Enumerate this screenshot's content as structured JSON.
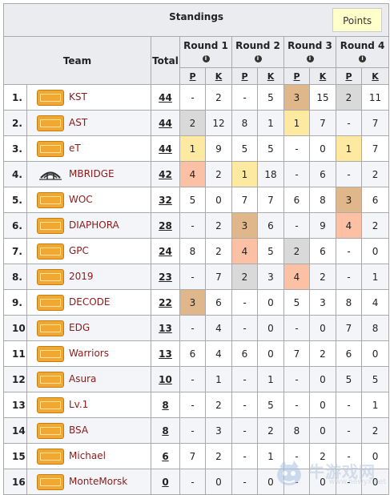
{
  "title": "Standings",
  "points_button": "Points",
  "headers": {
    "team": "Team",
    "total": "Total",
    "p": "P",
    "k": "K"
  },
  "rounds": [
    "Round 1",
    "Round 2",
    "Round 3",
    "Round 4"
  ],
  "rows": [
    {
      "rank": "1.",
      "logo": "pubg",
      "team": "KST",
      "total": "44",
      "r": [
        [
          "-",
          "2"
        ],
        [
          "-",
          "5"
        ],
        [
          "3",
          "15"
        ],
        [
          "2",
          "11"
        ]
      ],
      "hl": [
        [
          0,
          0
        ],
        [
          0,
          0
        ],
        [
          "bronze",
          0
        ],
        [
          "silver",
          0
        ]
      ]
    },
    {
      "rank": "2.",
      "logo": "pubg",
      "team": "AST",
      "total": "44",
      "r": [
        [
          "2",
          "12"
        ],
        [
          "8",
          "1"
        ],
        [
          "1",
          "7"
        ],
        [
          "-",
          "7"
        ]
      ],
      "hl": [
        [
          "silver",
          0
        ],
        [
          0,
          0
        ],
        [
          "gold",
          0
        ],
        [
          0,
          0
        ]
      ]
    },
    {
      "rank": "3.",
      "logo": "pubg",
      "team": "eT",
      "total": "44",
      "r": [
        [
          "1",
          "9"
        ],
        [
          "5",
          "5"
        ],
        [
          "-",
          "0"
        ],
        [
          "1",
          "7"
        ]
      ],
      "hl": [
        [
          "gold",
          0
        ],
        [
          0,
          0
        ],
        [
          0,
          0
        ],
        [
          "gold",
          0
        ]
      ]
    },
    {
      "rank": "4.",
      "logo": "mbridge",
      "team": "MBRIDGE",
      "total": "42",
      "r": [
        [
          "4",
          "2"
        ],
        [
          "1",
          "18"
        ],
        [
          "-",
          "6"
        ],
        [
          "-",
          "2"
        ]
      ],
      "hl": [
        [
          "fourth",
          0
        ],
        [
          "gold",
          0
        ],
        [
          0,
          0
        ],
        [
          0,
          0
        ]
      ]
    },
    {
      "rank": "5.",
      "logo": "pubg",
      "team": "WOC",
      "total": "32",
      "r": [
        [
          "5",
          "0"
        ],
        [
          "7",
          "7"
        ],
        [
          "6",
          "8"
        ],
        [
          "3",
          "6"
        ]
      ],
      "hl": [
        [
          0,
          0
        ],
        [
          0,
          0
        ],
        [
          0,
          0
        ],
        [
          "bronze",
          0
        ]
      ]
    },
    {
      "rank": "6.",
      "logo": "pubg",
      "team": "DIAPHORA",
      "total": "28",
      "r": [
        [
          "-",
          "2"
        ],
        [
          "3",
          "6"
        ],
        [
          "-",
          "9"
        ],
        [
          "4",
          "2"
        ]
      ],
      "hl": [
        [
          0,
          0
        ],
        [
          "bronze",
          0
        ],
        [
          0,
          0
        ],
        [
          "fourth",
          0
        ]
      ]
    },
    {
      "rank": "7.",
      "logo": "pubg",
      "team": "GPC",
      "total": "24",
      "r": [
        [
          "8",
          "2"
        ],
        [
          "4",
          "5"
        ],
        [
          "2",
          "6"
        ],
        [
          "-",
          "0"
        ]
      ],
      "hl": [
        [
          0,
          0
        ],
        [
          "fourth",
          0
        ],
        [
          "silver",
          0
        ],
        [
          0,
          0
        ]
      ]
    },
    {
      "rank": "8.",
      "logo": "pubg",
      "team": "2019",
      "total": "23",
      "r": [
        [
          "-",
          "7"
        ],
        [
          "2",
          "3"
        ],
        [
          "4",
          "2"
        ],
        [
          "-",
          "1"
        ]
      ],
      "hl": [
        [
          0,
          0
        ],
        [
          "silver",
          0
        ],
        [
          "fourth",
          0
        ],
        [
          0,
          0
        ]
      ]
    },
    {
      "rank": "9.",
      "logo": "pubg",
      "team": "DECODE",
      "total": "22",
      "r": [
        [
          "3",
          "6"
        ],
        [
          "-",
          "0"
        ],
        [
          "5",
          "3"
        ],
        [
          "8",
          "4"
        ]
      ],
      "hl": [
        [
          "bronze",
          0
        ],
        [
          0,
          0
        ],
        [
          0,
          0
        ],
        [
          0,
          0
        ]
      ]
    },
    {
      "rank": "10.",
      "logo": "pubg",
      "team": "EDG",
      "total": "13",
      "r": [
        [
          "-",
          "4"
        ],
        [
          "-",
          "0"
        ],
        [
          "-",
          "0"
        ],
        [
          "7",
          "8"
        ]
      ],
      "hl": [
        [
          0,
          0
        ],
        [
          0,
          0
        ],
        [
          0,
          0
        ],
        [
          0,
          0
        ]
      ]
    },
    {
      "rank": "11.",
      "logo": "pubg",
      "team": "Warriors",
      "total": "13",
      "r": [
        [
          "6",
          "4"
        ],
        [
          "6",
          "0"
        ],
        [
          "7",
          "2"
        ],
        [
          "6",
          "0"
        ]
      ],
      "hl": [
        [
          0,
          0
        ],
        [
          0,
          0
        ],
        [
          0,
          0
        ],
        [
          0,
          0
        ]
      ]
    },
    {
      "rank": "12.",
      "logo": "pubg",
      "team": "Asura",
      "total": "10",
      "r": [
        [
          "-",
          "1"
        ],
        [
          "-",
          "1"
        ],
        [
          "-",
          "0"
        ],
        [
          "5",
          "5"
        ]
      ],
      "hl": [
        [
          0,
          0
        ],
        [
          0,
          0
        ],
        [
          0,
          0
        ],
        [
          0,
          0
        ]
      ]
    },
    {
      "rank": "13.",
      "logo": "pubg",
      "team": "Lv.1",
      "total": "8",
      "r": [
        [
          "-",
          "2"
        ],
        [
          "-",
          "5"
        ],
        [
          "-",
          "0"
        ],
        [
          "-",
          "1"
        ]
      ],
      "hl": [
        [
          0,
          0
        ],
        [
          0,
          0
        ],
        [
          0,
          0
        ],
        [
          0,
          0
        ]
      ]
    },
    {
      "rank": "14.",
      "logo": "pubg",
      "team": "BSA",
      "total": "8",
      "r": [
        [
          "-",
          "3"
        ],
        [
          "-",
          "2"
        ],
        [
          "8",
          "0"
        ],
        [
          "-",
          "2"
        ]
      ],
      "hl": [
        [
          0,
          0
        ],
        [
          0,
          0
        ],
        [
          0,
          0
        ],
        [
          0,
          0
        ]
      ]
    },
    {
      "rank": "15.",
      "logo": "pubg",
      "team": "Michael",
      "total": "6",
      "r": [
        [
          "7",
          "2"
        ],
        [
          "-",
          "1"
        ],
        [
          "-",
          "2"
        ],
        [
          "-",
          "0"
        ]
      ],
      "hl": [
        [
          0,
          0
        ],
        [
          0,
          0
        ],
        [
          0,
          0
        ],
        [
          0,
          0
        ]
      ]
    },
    {
      "rank": "16.",
      "logo": "pubg",
      "team": "MonteMorsk",
      "total": "0",
      "r": [
        [
          "-",
          "0"
        ],
        [
          "-",
          "0"
        ],
        [
          "-",
          "0"
        ],
        [
          "-",
          "0"
        ]
      ],
      "hl": [
        [
          0,
          0
        ],
        [
          0,
          0
        ],
        [
          0,
          0
        ],
        [
          0,
          0
        ]
      ]
    }
  ],
  "highlight_colors": {
    "gold": "#fde9a0",
    "silver": "#d9d9d9",
    "bronze": "#e0b78a",
    "fourth": "#fcc0a4"
  },
  "watermark": {
    "text": "牛游戏网",
    "url": "www.newyx.net"
  }
}
